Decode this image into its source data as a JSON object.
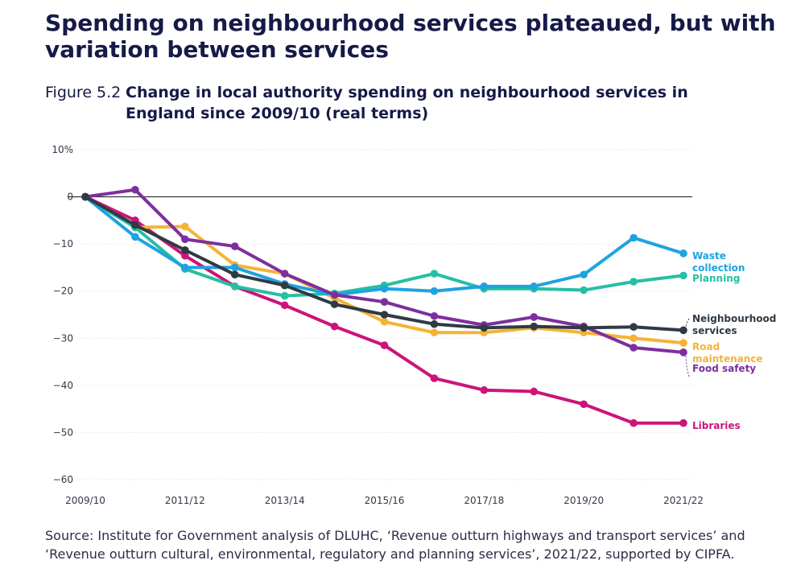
{
  "headline": "Spending on neighbourhood services plateaued, but with variation between services",
  "figure": {
    "label": "Figure 5.2",
    "title": "Change in local authority spending on neighbourhood services in England since 2009/10 (real terms)"
  },
  "source": "Source: Institute for Government analysis of DLUHC, ‘Revenue outturn highways and transport services’ and ‘Revenue outturn cultural, environmental, regulatory and planning services’, 2021/22, supported by CIPFA.",
  "chart_data": {
    "type": "line",
    "x": [
      "2009/10",
      "2010/11",
      "2011/12",
      "2012/13",
      "2013/14",
      "2014/15",
      "2015/16",
      "2016/17",
      "2017/18",
      "2018/19",
      "2019/20",
      "2020/21",
      "2021/22"
    ],
    "x_tick_labels": [
      "2009/10",
      "2011/12",
      "2013/14",
      "2015/16",
      "2017/18",
      "2019/20",
      "2021/22"
    ],
    "y_tick_labels": [
      "10%",
      "0",
      "−10",
      "−20",
      "−30",
      "−40",
      "−50",
      "−60"
    ],
    "ylim": [
      -60,
      10
    ],
    "series": [
      {
        "name": "Libraries",
        "label_lines": [
          "Libraries"
        ],
        "color": "#cc1479",
        "values": [
          0,
          -5,
          -12.5,
          -19,
          -23,
          -27.5,
          -31.5,
          -38.5,
          -41,
          -41.3,
          -44,
          -48,
          -48
        ]
      },
      {
        "name": "Road maintenance",
        "label_lines": [
          "Road",
          "maintenance"
        ],
        "color": "#f5b335",
        "values": [
          0,
          -6.5,
          -6.3,
          -14.5,
          -16.3,
          -21.5,
          -26.5,
          -28.8,
          -28.8,
          -27.8,
          -28.8,
          -30,
          -31
        ]
      },
      {
        "name": "Planning",
        "label_lines": [
          "Planning"
        ],
        "color": "#25bfa4",
        "values": [
          0,
          -6.5,
          -15.3,
          -19,
          -21,
          -20.5,
          -18.8,
          -16.3,
          -19.5,
          -19.5,
          -19.8,
          -18,
          -16.7
        ]
      },
      {
        "name": "Waste collection",
        "label_lines": [
          "Waste",
          "collection"
        ],
        "color": "#1fa3e0",
        "values": [
          0,
          -8.5,
          -15,
          -15,
          -18.5,
          -20.8,
          -19.5,
          -20,
          -19,
          -19,
          -16.5,
          -8.7,
          -12
        ]
      },
      {
        "name": "Food safety",
        "label_lines": [
          "Food safety"
        ],
        "color": "#7d2f9d",
        "values": [
          0,
          1.5,
          -9,
          -10.5,
          -16.3,
          -20.8,
          -22.3,
          -25.3,
          -27.2,
          -25.5,
          -27.5,
          -32,
          -33
        ]
      },
      {
        "name": "Neighbourhood services",
        "label_lines": [
          "Neighbourhood",
          "services"
        ],
        "color": "#2f3a45",
        "values": [
          0,
          -6,
          -11.3,
          -16.5,
          -18.8,
          -22.8,
          -25,
          -27,
          -27.8,
          -27.5,
          -27.8,
          -27.6,
          -28.3
        ]
      }
    ]
  }
}
